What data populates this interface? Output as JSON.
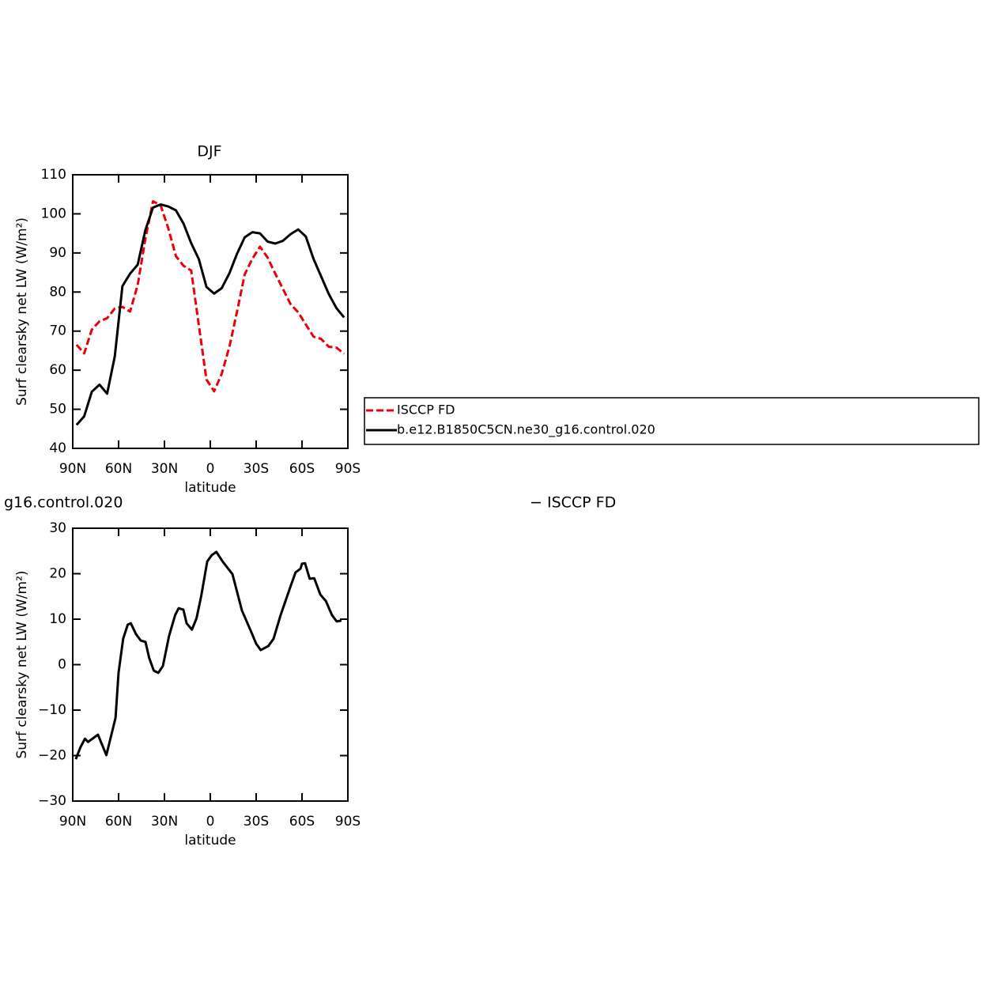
{
  "chart_data": [
    {
      "type": "line",
      "title": "DJF",
      "y_label": "Surf clearsky net LW (W/m²)",
      "x_label": "latitude",
      "x": [
        87.5,
        82.5,
        77.5,
        72.5,
        67.5,
        62.5,
        57.5,
        52.5,
        47.5,
        42.5,
        37.5,
        32.5,
        27.5,
        22.5,
        17.5,
        12.5,
        7.5,
        2.5,
        -2.5,
        -7.5,
        -12.5,
        -17.5,
        -22.5,
        -27.5,
        -32.5,
        -37.5,
        -42.5,
        -47.5,
        -52.5,
        -57.5,
        -62.5,
        -67.5,
        -72.5,
        -77.5,
        -82.5,
        -87.5
      ],
      "series": [
        {
          "name": "ISCCP FD",
          "color": "#e8000b",
          "dash": "dashed",
          "values": [
            66.5,
            64.3,
            70.4,
            72.5,
            73.3,
            75.8,
            76.2,
            75,
            81.8,
            93.6,
            103.2,
            102.2,
            96.3,
            89.2,
            86.7,
            85.5,
            71.5,
            57.6,
            54.6,
            59.1,
            66,
            75,
            84.5,
            88.5,
            91.6,
            88.8,
            84.7,
            80.8,
            76.9,
            74.8,
            71.7,
            68.6,
            68,
            66,
            65.8,
            64.2
          ]
        },
        {
          "name": "b.e12.B1850C5CN.ne30_g16.control.020",
          "color": "#000000",
          "dash": "solid",
          "values": [
            46,
            48.2,
            54.5,
            56.3,
            54,
            63.5,
            81.5,
            84.7,
            87,
            95.8,
            101.6,
            102.4,
            101.9,
            100.9,
            97.5,
            92.5,
            88.4,
            81.3,
            79.6,
            81,
            84.8,
            89.8,
            94,
            95.3,
            95,
            92.9,
            92.4,
            93.1,
            94.8,
            96,
            94.2,
            88.5,
            84,
            79.5,
            75.9,
            73.5
          ]
        }
      ],
      "xlim": [
        90,
        -90
      ],
      "xticks": [
        {
          "value": 90,
          "label": "90N"
        },
        {
          "value": 60,
          "label": "60N"
        },
        {
          "value": 30,
          "label": "30N"
        },
        0,
        {
          "value": -30,
          "label": "30S"
        },
        {
          "value": -60,
          "label": "60S"
        },
        {
          "value": -90,
          "label": "90S"
        }
      ],
      "ylim": [
        40,
        110
      ],
      "yticks": [
        40,
        50,
        60,
        70,
        80,
        90,
        100,
        110
      ],
      "legend": "right"
    },
    {
      "type": "line",
      "title_left": "g16.control.020",
      "title_right": "− ISCCP FD",
      "y_label": "Surf clearsky net LW (W/m²)",
      "x_label": "latitude",
      "x": [
        88,
        85,
        82,
        80,
        73.5,
        68,
        62,
        60,
        57,
        54,
        52,
        48.6,
        45.5,
        42.4,
        40,
        37,
        34,
        31,
        27,
        23,
        20.7,
        17.6,
        15.5,
        12,
        9,
        6,
        2,
        -1,
        -4,
        -8,
        -14.5,
        -20.7,
        -26.9,
        -30,
        -33,
        -38,
        -41.4,
        -46,
        -52.8,
        -55.8,
        -59,
        -60,
        -62,
        -65,
        -68,
        -72,
        -75.6,
        -79.6,
        -82.7,
        -85.8
      ],
      "color": "#000000",
      "values": [
        -20.8,
        -18.2,
        -16.3,
        -17,
        -15.4,
        -19.9,
        -11.7,
        -1.7,
        5.7,
        8.8,
        9.1,
        6.7,
        5.3,
        5,
        1.5,
        -1.3,
        -1.8,
        -0.3,
        6.3,
        10.9,
        12.4,
        12.1,
        9.1,
        7.7,
        10.2,
        15,
        22.7,
        24.1,
        24.8,
        22.7,
        19.9,
        11.9,
        7.1,
        4.6,
        3.2,
        4.1,
        5.7,
        10.9,
        17.5,
        20.3,
        21.1,
        22.2,
        22.3,
        18.9,
        19,
        15.4,
        14,
        10.9,
        9.5,
        9.7
      ],
      "xlim": [
        90,
        -90
      ],
      "xticks": [
        {
          "value": 90,
          "label": "90N"
        },
        {
          "value": 60,
          "label": "60N"
        },
        {
          "value": 30,
          "label": "30N"
        },
        0,
        {
          "value": -30,
          "label": "30S"
        },
        {
          "value": -60,
          "label": "60S"
        },
        {
          "value": -90,
          "label": "90S"
        }
      ],
      "ylim": [
        -30,
        30
      ],
      "yticks": [
        {
          "value": -30,
          "label": "−30"
        },
        {
          "value": -20,
          "label": "−20"
        },
        {
          "value": -10,
          "label": "−10"
        },
        0,
        10,
        20,
        30
      ]
    }
  ]
}
